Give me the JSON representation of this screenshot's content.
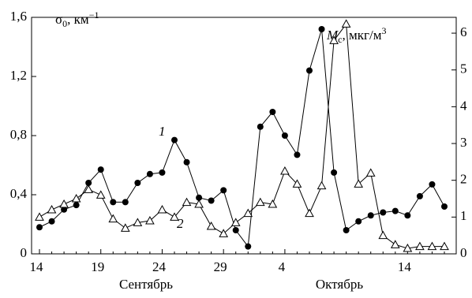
{
  "chart_data": {
    "type": "line",
    "y_label": {
      "symbol": "σ",
      "sub": "0",
      "unit": ", км",
      "sup": "−1"
    },
    "y2_label": {
      "symbol": "M",
      "sub": "с",
      "unit": ", мкг/м",
      "sup": "3"
    },
    "months": [
      "Сентябрь",
      "Октябрь"
    ],
    "annotations": [
      "1",
      "2"
    ],
    "categories": [
      "14",
      null,
      null,
      null,
      null,
      "19",
      null,
      null,
      null,
      null,
      "24",
      null,
      null,
      null,
      null,
      "29",
      null,
      null,
      null,
      null,
      "4",
      null,
      null,
      null,
      null,
      null,
      null,
      null,
      null,
      null,
      "14",
      null,
      null,
      null
    ],
    "ylim": [
      0,
      1.6
    ],
    "yticks": [
      0,
      {
        "value": 0.4,
        "label": "0,4"
      },
      {
        "value": 0.8,
        "label": "0,8"
      },
      {
        "value": 1.2,
        "label": "1,2"
      },
      {
        "value": 1.6,
        "label": "1,6"
      }
    ],
    "y2lim": [
      0,
      6.43
    ],
    "y2ticks": [
      0,
      1,
      2,
      3,
      4,
      5,
      6
    ],
    "series": [
      {
        "color": "#000000",
        "marker": "filled",
        "values": [
          0.18,
          0.22,
          0.3,
          0.33,
          0.48,
          0.57,
          0.35,
          0.35,
          0.48,
          0.54,
          0.55,
          0.77,
          0.62,
          0.38,
          0.36,
          0.43,
          0.16,
          0.05,
          0.86,
          0.96,
          0.8,
          0.67,
          1.24,
          1.52,
          0.55,
          0.16,
          0.22,
          0.26,
          0.28,
          0.29,
          0.26,
          0.39,
          0.47,
          0.32
        ]
      },
      {
        "color": "#000000",
        "marker": "open-triangle",
        "axis": "y2",
        "values": [
          1.0,
          1.2,
          1.35,
          1.5,
          1.75,
          1.6,
          0.95,
          0.7,
          0.85,
          0.9,
          1.2,
          1.0,
          1.4,
          1.35,
          0.75,
          0.55,
          0.85,
          1.1,
          1.4,
          1.35,
          2.25,
          1.9,
          1.1,
          1.85,
          5.8,
          6.25,
          1.9,
          2.2,
          0.5,
          0.25,
          0.15,
          0.2,
          0.2,
          0.2
        ]
      }
    ]
  }
}
